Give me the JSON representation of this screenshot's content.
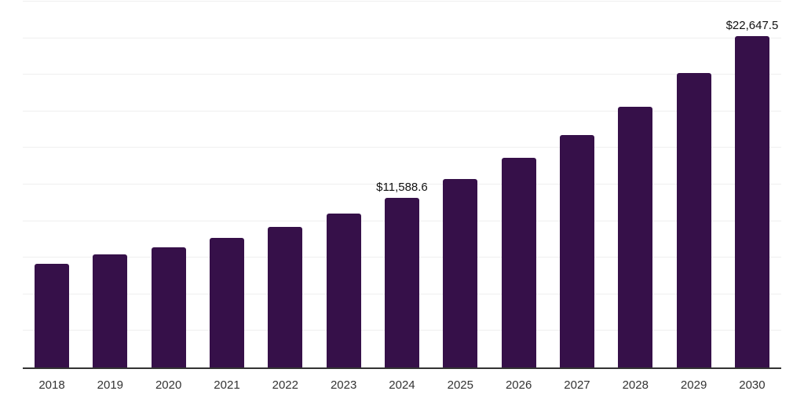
{
  "chart_data": {
    "type": "bar",
    "title": "",
    "xlabel": "",
    "ylabel": "",
    "categories": [
      "2018",
      "2019",
      "2020",
      "2021",
      "2022",
      "2023",
      "2024",
      "2025",
      "2026",
      "2027",
      "2028",
      "2029",
      "2030"
    ],
    "values": [
      7100,
      7700,
      8200,
      8850,
      9600,
      10500,
      11588.6,
      12900,
      14300,
      15900,
      17800,
      20100,
      22647.5
    ],
    "data_labels": {
      "2024": "$11,588.6",
      "2030": "$22,647.5"
    },
    "ylim": [
      0,
      25000
    ],
    "gridline_interval": 2500,
    "grid": true,
    "y_tick_labels_visible": false,
    "legend_position": "none",
    "colors": {
      "bar": "#361049",
      "axis_line": "#333333",
      "gridline": "#efefef",
      "tick_label": "#333333",
      "data_label": "#111111",
      "background": "#ffffff"
    }
  }
}
